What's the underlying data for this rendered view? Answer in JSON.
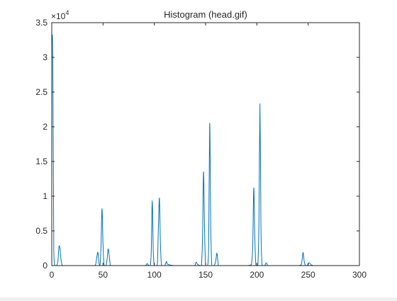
{
  "chart_data": {
    "type": "line",
    "title": "Histogram (head.gif)",
    "xlabel": "",
    "ylabel": "",
    "xlim": [
      0,
      300
    ],
    "ylim": [
      0,
      35000
    ],
    "y_exponent_label": "×10",
    "y_exponent_power": "4",
    "x_ticks": [
      0,
      50,
      100,
      150,
      200,
      250,
      300
    ],
    "x_tick_labels": [
      "0",
      "50",
      "100",
      "150",
      "200",
      "250",
      "300"
    ],
    "y_ticks": [
      0,
      5000,
      10000,
      15000,
      20000,
      25000,
      30000,
      35000
    ],
    "y_tick_labels": [
      "0",
      "0.5",
      "1",
      "1.5",
      "2",
      "2.5",
      "3",
      "3.5"
    ],
    "grid": false,
    "line_color": "#0072bd",
    "series": [
      {
        "x": [
          0,
          1,
          2,
          3,
          4,
          5,
          6,
          7,
          8,
          9,
          10,
          11,
          12,
          20,
          30,
          40,
          42,
          43,
          44,
          45,
          46,
          47,
          48,
          49,
          50,
          51,
          52,
          53,
          54,
          55,
          56,
          57,
          58,
          60,
          70,
          80,
          90,
          92,
          93,
          94,
          95,
          96,
          97,
          98,
          99,
          100,
          101,
          102,
          103,
          104,
          105,
          106,
          107,
          108,
          110,
          111,
          112,
          113,
          120,
          130,
          139,
          140,
          141,
          142,
          145,
          146,
          147,
          148,
          149,
          150,
          151,
          152,
          153,
          154,
          155,
          156,
          157,
          158,
          159,
          160,
          161,
          162,
          163,
          170,
          180,
          190,
          194,
          195,
          196,
          197,
          198,
          199,
          200,
          201,
          202,
          203,
          204,
          205,
          206,
          207,
          208,
          209,
          210,
          211,
          220,
          230,
          240,
          243,
          244,
          245,
          246,
          247,
          248,
          249,
          250,
          251,
          252,
          253,
          254,
          255,
          256,
          260,
          270,
          280,
          290,
          300
        ],
        "y": [
          33000,
          30000,
          2000,
          0,
          0,
          100,
          600,
          2700,
          2500,
          900,
          100,
          0,
          0,
          0,
          0,
          0,
          0,
          300,
          1300,
          1900,
          400,
          0,
          2500,
          8200,
          3000,
          100,
          0,
          0,
          1000,
          2400,
          1500,
          100,
          0,
          0,
          0,
          0,
          0,
          100,
          300,
          100,
          0,
          0,
          2000,
          9400,
          2000,
          0,
          0,
          0,
          200,
          5500,
          9700,
          3000,
          100,
          0,
          0,
          300,
          600,
          200,
          0,
          0,
          0,
          300,
          500,
          200,
          0,
          100,
          4000,
          13500,
          5000,
          0,
          0,
          0,
          3000,
          20500,
          6000,
          0,
          0,
          0,
          200,
          800,
          1800,
          600,
          0,
          0,
          0,
          0,
          100,
          500,
          3000,
          11200,
          4000,
          100,
          0,
          100,
          6000,
          23300,
          5500,
          200,
          0,
          0,
          100,
          400,
          200,
          0,
          0,
          0,
          0,
          100,
          700,
          1900,
          800,
          100,
          0,
          0,
          200,
          400,
          300,
          100,
          50,
          0,
          0,
          0,
          0,
          0,
          0,
          0
        ]
      }
    ]
  }
}
